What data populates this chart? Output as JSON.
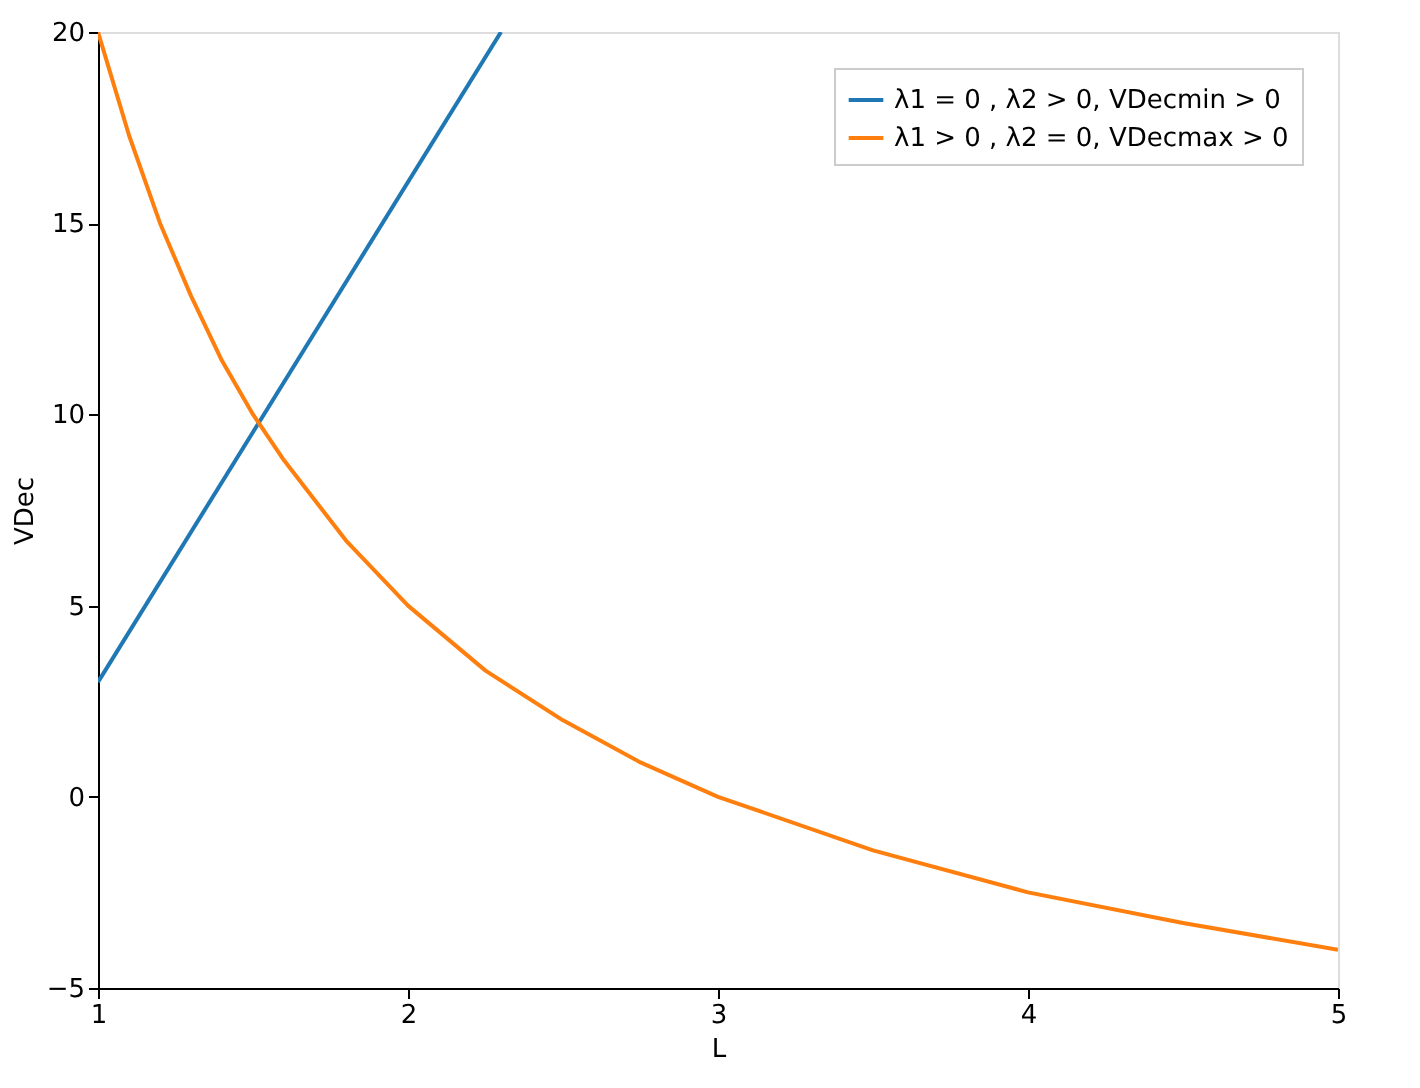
{
  "chart_data": {
    "type": "line",
    "xlabel": "L",
    "ylabel": "VDec",
    "xlim": [
      1,
      5
    ],
    "ylim": [
      -5,
      20
    ],
    "xticks": [
      1,
      2,
      3,
      4,
      5
    ],
    "yticks": [
      -5,
      0,
      5,
      10,
      15,
      20
    ],
    "grid": false,
    "legend": "top right",
    "line_style": "solid",
    "marker": "none",
    "series": [
      {
        "name": "λ1 = 0 , λ2 > 0, VDecmin > 0",
        "color": "#1f77b4",
        "x": [
          1,
          2.3
        ],
        "values": [
          3,
          20
        ]
      },
      {
        "name": "λ1 > 0 , λ2 = 0, VDecmax > 0",
        "color": "#ff7f0e",
        "x": [
          1,
          1.1,
          1.2,
          1.3,
          1.4,
          1.5,
          1.6,
          1.8,
          2,
          2.25,
          2.5,
          2.75,
          3,
          3.5,
          4,
          4.5,
          5
        ],
        "values": [
          20,
          17.3,
          15,
          13.1,
          11.4,
          10,
          8.8,
          6.7,
          5,
          3.3,
          2,
          0.9,
          0,
          -1.4,
          -2.5,
          -3.3,
          -4
        ]
      }
    ]
  }
}
